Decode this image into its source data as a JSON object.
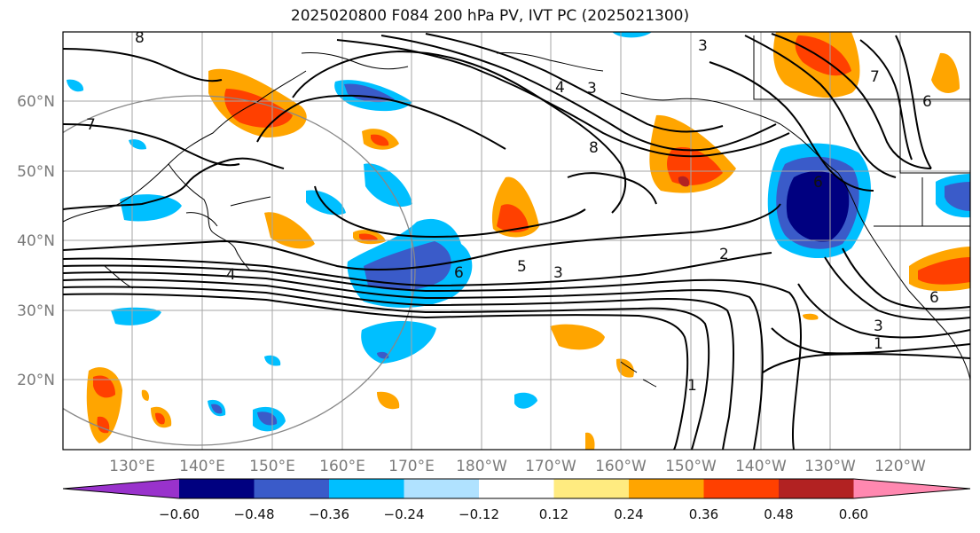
{
  "title": "2025020800 F084 200 hPa PV, IVT PC (2025021300)",
  "lat_labels": [
    "60°N",
    "50°N",
    "40°N",
    "30°N",
    "20°N"
  ],
  "lon_labels": [
    "130°E",
    "140°E",
    "150°E",
    "160°E",
    "170°E",
    "180°W",
    "170°W",
    "160°W",
    "150°W",
    "140°W",
    "130°W",
    "120°W"
  ],
  "contour_labels": [
    "7",
    "8",
    "3",
    "4",
    "3",
    "8",
    "6",
    "5",
    "3",
    "2",
    "4",
    "6",
    "3",
    "1",
    "1",
    "7",
    "6",
    "6"
  ],
  "colorbar": {
    "ticks": [
      "−0.60",
      "−0.48",
      "−0.36",
      "−0.24",
      "−0.12",
      "0.12",
      "0.24",
      "0.36",
      "0.48",
      "0.60"
    ],
    "colors": [
      "#9932cc",
      "#000080",
      "#3a5bc9",
      "#00bfff",
      "#b0e2ff",
      "#ffffff",
      "#ffeb80",
      "#ffa500",
      "#ff4000",
      "#b22222",
      "#ff88b0"
    ]
  }
}
